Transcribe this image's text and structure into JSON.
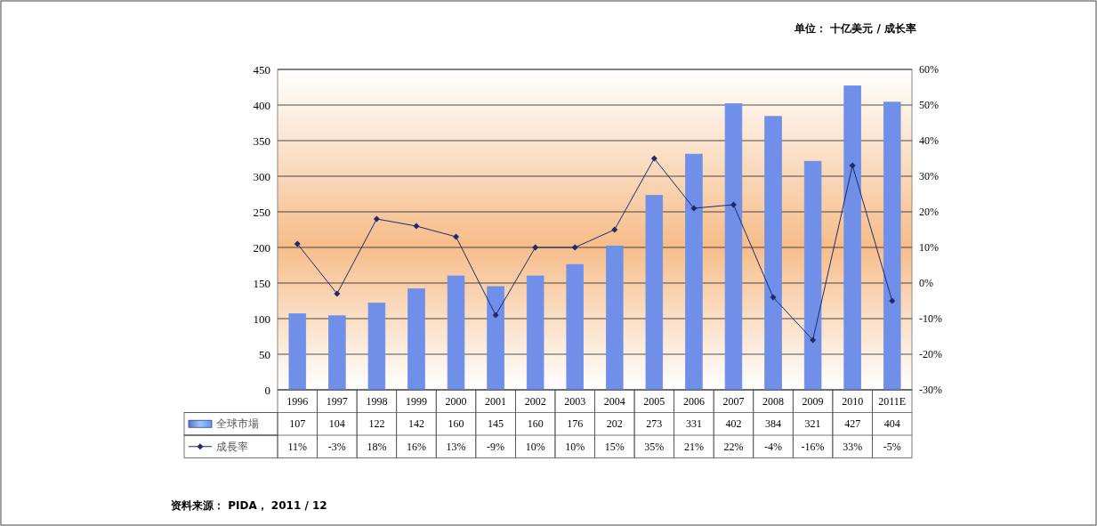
{
  "chart_data": {
    "type": "bar",
    "categories": [
      "1996",
      "1997",
      "1998",
      "1999",
      "2000",
      "2001",
      "2002",
      "2003",
      "2004",
      "2005",
      "2006",
      "2007",
      "2008",
      "2009",
      "2010",
      "2011E"
    ],
    "series": [
      {
        "name": "全球市場",
        "color": "#6f8fe8",
        "values": [
          107,
          104,
          122,
          142,
          160,
          145,
          160,
          176,
          202,
          273,
          331,
          402,
          384,
          321,
          427,
          404
        ],
        "value_labels": [
          "107",
          "104",
          "122",
          "142",
          "160",
          "145",
          "160",
          "176",
          "202",
          "273",
          "331",
          "402",
          "384",
          "321",
          "427",
          "404"
        ]
      },
      {
        "name": "成長率",
        "type": "line",
        "axis": "y2",
        "color": "#1f2a6e",
        "values": [
          11,
          -3,
          18,
          16,
          13,
          -9,
          10,
          10,
          15,
          35,
          21,
          22,
          -4,
          -16,
          33,
          -5
        ],
        "value_labels": [
          "11%",
          "-3%",
          "18%",
          "16%",
          "13%",
          "-9%",
          "10%",
          "10%",
          "15%",
          "35%",
          "21%",
          "22%",
          "-4%",
          "-16%",
          "33%",
          "-5%"
        ]
      }
    ],
    "ylim": [
      0,
      450
    ],
    "yticks": [
      0,
      50,
      100,
      150,
      200,
      250,
      300,
      350,
      400,
      450
    ],
    "y2lim": [
      -30,
      60
    ],
    "y2ticks": [
      {
        "value": -30,
        "label": "-30%"
      },
      {
        "value": -20,
        "label": "-20%"
      },
      {
        "value": -10,
        "label": "-10%"
      },
      {
        "value": 0,
        "label": "0%"
      },
      {
        "value": 10,
        "label": "10%"
      },
      {
        "value": 20,
        "label": "20%"
      },
      {
        "value": 30,
        "label": "30%"
      },
      {
        "value": 40,
        "label": "40%"
      },
      {
        "value": 50,
        "label": "50%"
      },
      {
        "value": 60,
        "label": "60%"
      }
    ],
    "grid": "y",
    "legend": "bottom",
    "marker": "diamond",
    "line_style": "solid",
    "annotations": [
      "单位： 十亿美元 / 成长率",
      "资料来源： PIDA， 2011 / 12"
    ]
  }
}
